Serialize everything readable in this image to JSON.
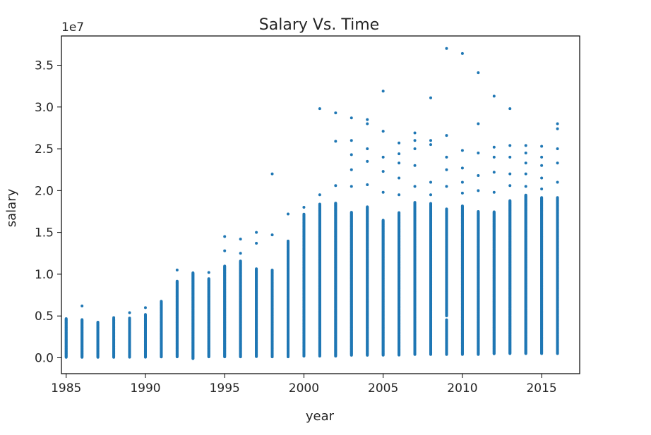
{
  "chart_data": {
    "type": "scatter",
    "title": "Salary Vs. Time",
    "xlabel": "year",
    "ylabel": "salary",
    "y_offset_label": "1e7",
    "xlim": [
      1984.7,
      2017.4
    ],
    "ylim": [
      -0.19,
      3.85
    ],
    "y_unit_multiplier": 10000000,
    "x_ticks": [
      1985,
      1990,
      1995,
      2000,
      2005,
      2010,
      2015
    ],
    "x_tick_labels": [
      "1985",
      "1990",
      "1995",
      "2000",
      "2005",
      "2010",
      "2015"
    ],
    "y_ticks": [
      0.0,
      0.5,
      1.0,
      1.5,
      2.0,
      2.5,
      3.0,
      3.5
    ],
    "y_tick_labels": [
      "0.0",
      "0.5",
      "1.0",
      "1.5",
      "2.0",
      "2.5",
      "3.0",
      "3.5"
    ],
    "grid": false,
    "marker_color": "#1f77b4",
    "series": [
      {
        "x": [
          1985,
          1986,
          1987,
          1988,
          1989,
          1990,
          1991,
          1992,
          1993,
          1994,
          1995,
          1996,
          1997,
          1998,
          1999,
          2000,
          2001,
          2002,
          2003,
          2004,
          2005,
          2006,
          2007,
          2008,
          2009,
          2010,
          2011,
          2012,
          2013,
          2014,
          2015,
          2016
        ],
        "y_min": [
          0.006,
          0.006,
          0.006,
          0.006,
          0.007,
          0.007,
          0.01,
          0.011,
          -0.01,
          0.011,
          0.011,
          0.011,
          0.015,
          0.011,
          0.011,
          0.02,
          0.02,
          0.02,
          0.03,
          0.03,
          0.031,
          0.032,
          0.04,
          0.04,
          0.04,
          0.04,
          0.04,
          0.048,
          0.05,
          0.05,
          0.05,
          0.05
        ],
        "y_max": [
          0.47,
          0.46,
          0.43,
          0.47,
          0.48,
          0.52,
          0.68,
          0.92,
          1.02,
          0.95,
          1.1,
          1.16,
          1.07,
          1.05,
          1.4,
          1.72,
          1.84,
          1.85,
          1.74,
          1.81,
          1.65,
          1.74,
          1.86,
          1.85,
          1.78,
          1.82,
          1.75,
          1.75,
          1.88,
          1.95,
          1.92,
          1.92
        ],
        "y_outliers": [
          [],
          [
            0.62
          ],
          [],
          [
            0.48
          ],
          [
            0.54
          ],
          [
            0.6
          ],
          [],
          [
            1.05
          ],
          [],
          [
            1.02
          ],
          [
            1.45,
            1.28
          ],
          [
            1.42,
            1.25
          ],
          [
            1.5,
            1.37
          ],
          [
            2.2,
            1.47
          ],
          [
            1.72
          ],
          [
            1.8
          ],
          [
            2.98,
            1.95
          ],
          [
            2.93,
            2.59,
            2.06
          ],
          [
            2.87,
            2.6,
            2.43,
            2.25,
            2.05
          ],
          [
            2.85,
            2.8,
            2.5,
            2.35,
            2.07
          ],
          [
            3.19,
            2.71,
            2.4,
            2.23,
            1.98
          ],
          [
            2.57,
            2.44,
            2.33,
            2.15,
            1.95
          ],
          [
            2.69,
            2.6,
            2.5,
            2.3,
            2.05
          ],
          [
            3.11,
            2.6,
            2.55,
            2.1,
            1.95
          ],
          [
            3.7,
            2.66,
            2.4,
            2.25,
            2.05
          ],
          [
            3.64,
            2.48,
            2.27,
            2.1,
            1.97
          ],
          [
            3.41,
            2.8,
            2.45,
            2.18,
            2.0
          ],
          [
            3.13,
            2.52,
            2.4,
            2.22,
            1.98
          ],
          [
            2.98,
            2.54,
            2.4,
            2.2,
            2.06
          ],
          [
            2.54,
            2.45,
            2.33,
            2.2,
            2.05
          ],
          [
            2.53,
            2.4,
            2.3,
            2.15,
            2.02
          ],
          [
            2.8,
            2.74,
            2.5,
            2.33,
            2.1
          ]
        ],
        "y_gaps": [
          [],
          [],
          [],
          [],
          [],
          [],
          [],
          [],
          [],
          [],
          [],
          [],
          [],
          [],
          [],
          [],
          [],
          [],
          [],
          [],
          [],
          [],
          [],
          [],
          [
            0.48
          ],
          [],
          [],
          [],
          [],
          [],
          [],
          []
        ]
      }
    ]
  }
}
